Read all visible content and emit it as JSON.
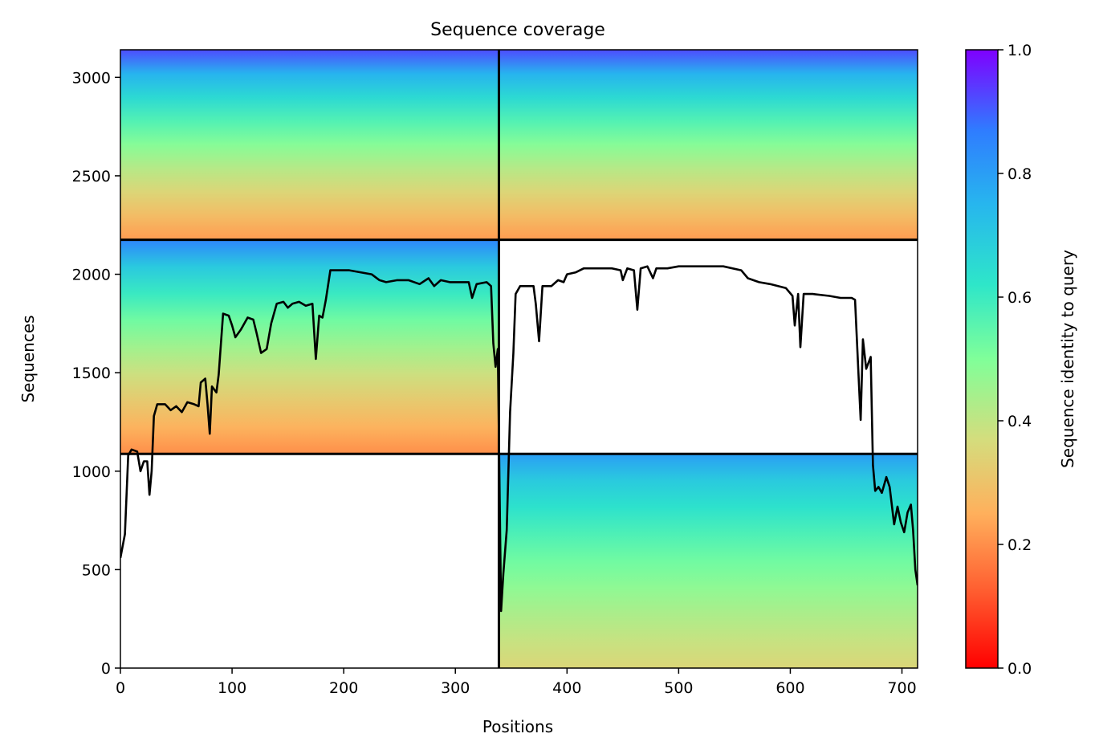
{
  "chart_data": {
    "type": "heatmap",
    "title": "Sequence coverage",
    "xlabel": "Positions",
    "ylabel": "Sequences",
    "xlim": [
      0,
      714
    ],
    "ylim": [
      0,
      3140
    ],
    "x_ticks": [
      0,
      100,
      200,
      300,
      400,
      500,
      600,
      700
    ],
    "y_ticks": [
      0,
      500,
      1000,
      1500,
      2000,
      2500,
      3000
    ],
    "colorbar": {
      "label": "Sequence identity to query",
      "range": [
        0.0,
        1.0
      ],
      "ticks": [
        0.0,
        0.2,
        0.4,
        0.6,
        0.8,
        1.0
      ],
      "colormap": "rainbow"
    },
    "chain_boundary_positions": [
      339
    ],
    "sequence_group_boundaries": [
      1088,
      2175
    ],
    "blocks": [
      {
        "x": [
          0,
          339
        ],
        "y": [
          2175,
          3140
        ],
        "identity_top": 0.92,
        "identity_bottom": 0.22,
        "covered_from_x": 0
      },
      {
        "x": [
          339,
          714
        ],
        "y": [
          2175,
          3140
        ],
        "identity_top": 0.92,
        "identity_bottom": 0.22,
        "covered_from_x": 339
      },
      {
        "x": [
          0,
          339
        ],
        "y": [
          1088,
          2175
        ],
        "identity_top": 0.85,
        "identity_bottom": 0.2,
        "covered_from_x": 0
      },
      {
        "x": [
          339,
          714
        ],
        "y": [
          0,
          1088
        ],
        "identity_top": 0.8,
        "identity_bottom": 0.35,
        "covered_from_x": 339
      }
    ],
    "coverage_line": {
      "name": "",
      "points": [
        [
          0,
          560
        ],
        [
          4,
          680
        ],
        [
          7,
          1080
        ],
        [
          10,
          1110
        ],
        [
          15,
          1100
        ],
        [
          18,
          1000
        ],
        [
          21,
          1050
        ],
        [
          24,
          1050
        ],
        [
          26,
          880
        ],
        [
          28,
          1000
        ],
        [
          30,
          1280
        ],
        [
          33,
          1340
        ],
        [
          40,
          1340
        ],
        [
          45,
          1310
        ],
        [
          50,
          1330
        ],
        [
          55,
          1300
        ],
        [
          60,
          1350
        ],
        [
          66,
          1340
        ],
        [
          70,
          1330
        ],
        [
          72,
          1450
        ],
        [
          76,
          1470
        ],
        [
          78,
          1340
        ],
        [
          80,
          1190
        ],
        [
          82,
          1430
        ],
        [
          86,
          1400
        ],
        [
          88,
          1490
        ],
        [
          92,
          1800
        ],
        [
          97,
          1790
        ],
        [
          100,
          1740
        ],
        [
          103,
          1680
        ],
        [
          108,
          1720
        ],
        [
          114,
          1780
        ],
        [
          119,
          1770
        ],
        [
          122,
          1700
        ],
        [
          126,
          1600
        ],
        [
          131,
          1620
        ],
        [
          135,
          1750
        ],
        [
          140,
          1850
        ],
        [
          146,
          1860
        ],
        [
          150,
          1830
        ],
        [
          154,
          1850
        ],
        [
          160,
          1860
        ],
        [
          166,
          1840
        ],
        [
          172,
          1850
        ],
        [
          175,
          1570
        ],
        [
          178,
          1790
        ],
        [
          181,
          1780
        ],
        [
          184,
          1870
        ],
        [
          188,
          2020
        ],
        [
          195,
          2020
        ],
        [
          205,
          2020
        ],
        [
          215,
          2010
        ],
        [
          225,
          2000
        ],
        [
          232,
          1970
        ],
        [
          238,
          1960
        ],
        [
          248,
          1970
        ],
        [
          258,
          1970
        ],
        [
          268,
          1950
        ],
        [
          276,
          1980
        ],
        [
          281,
          1940
        ],
        [
          287,
          1970
        ],
        [
          295,
          1960
        ],
        [
          303,
          1960
        ],
        [
          312,
          1960
        ],
        [
          315,
          1880
        ],
        [
          319,
          1950
        ],
        [
          328,
          1960
        ],
        [
          332,
          1940
        ],
        [
          334,
          1650
        ],
        [
          336,
          1530
        ],
        [
          338,
          1620
        ],
        [
          341,
          290
        ],
        [
          343,
          480
        ],
        [
          346,
          700
        ],
        [
          349,
          1300
        ],
        [
          352,
          1600
        ],
        [
          354,
          1900
        ],
        [
          358,
          1940
        ],
        [
          370,
          1940
        ],
        [
          372,
          1850
        ],
        [
          375,
          1660
        ],
        [
          378,
          1940
        ],
        [
          386,
          1940
        ],
        [
          392,
          1970
        ],
        [
          397,
          1960
        ],
        [
          400,
          2000
        ],
        [
          408,
          2010
        ],
        [
          415,
          2030
        ],
        [
          425,
          2030
        ],
        [
          440,
          2030
        ],
        [
          448,
          2020
        ],
        [
          450,
          1970
        ],
        [
          454,
          2030
        ],
        [
          460,
          2020
        ],
        [
          463,
          1820
        ],
        [
          466,
          2030
        ],
        [
          472,
          2040
        ],
        [
          477,
          1980
        ],
        [
          480,
          2030
        ],
        [
          490,
          2030
        ],
        [
          500,
          2040
        ],
        [
          510,
          2040
        ],
        [
          525,
          2040
        ],
        [
          540,
          2040
        ],
        [
          556,
          2020
        ],
        [
          562,
          1980
        ],
        [
          572,
          1960
        ],
        [
          582,
          1950
        ],
        [
          596,
          1930
        ],
        [
          602,
          1890
        ],
        [
          604,
          1740
        ],
        [
          607,
          1900
        ],
        [
          609,
          1630
        ],
        [
          612,
          1900
        ],
        [
          620,
          1900
        ],
        [
          635,
          1890
        ],
        [
          645,
          1880
        ],
        [
          655,
          1880
        ],
        [
          658,
          1870
        ],
        [
          661,
          1500
        ],
        [
          663,
          1260
        ],
        [
          665,
          1670
        ],
        [
          668,
          1520
        ],
        [
          672,
          1580
        ],
        [
          674,
          1030
        ],
        [
          676,
          900
        ],
        [
          679,
          920
        ],
        [
          682,
          890
        ],
        [
          686,
          970
        ],
        [
          689,
          920
        ],
        [
          693,
          730
        ],
        [
          696,
          820
        ],
        [
          699,
          740
        ],
        [
          702,
          690
        ],
        [
          705,
          790
        ],
        [
          708,
          830
        ],
        [
          710,
          700
        ],
        [
          712,
          500
        ],
        [
          714,
          420
        ]
      ]
    }
  }
}
